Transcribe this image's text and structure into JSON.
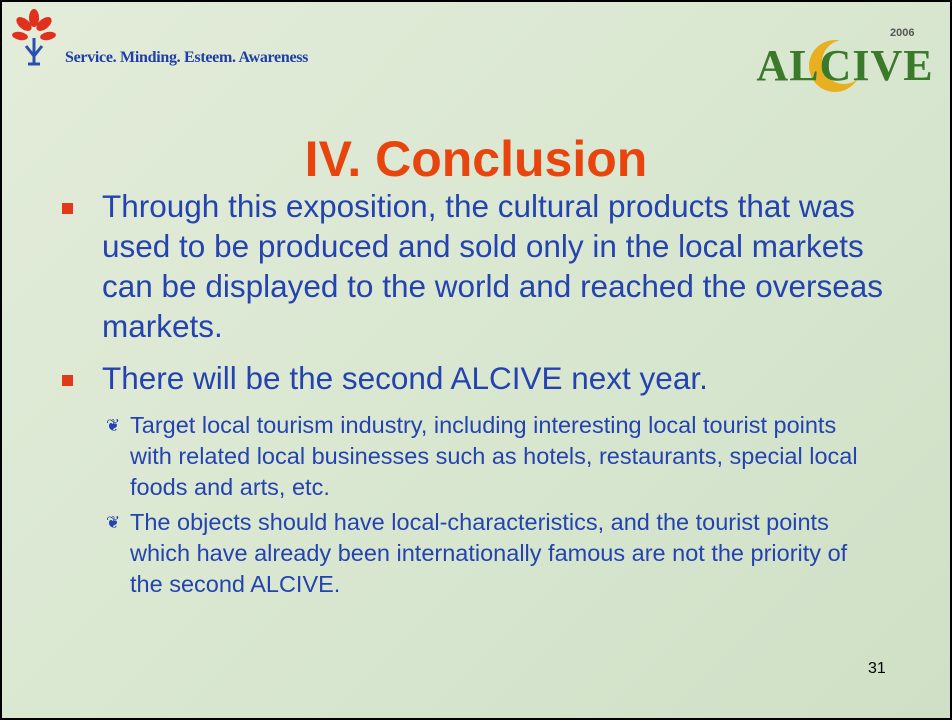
{
  "header": {
    "tagline": "Service. Minding. Esteem. Awareness",
    "logo_text": "ALCIVE",
    "logo_year": "2006"
  },
  "title": "IV. Conclusion",
  "bullets": [
    {
      "text": "Through this exposition, the cultural products that was used to be produced and sold only in the local markets can be displayed to the world and reached the overseas markets.",
      "subs": []
    },
    {
      "text": "There will be the second ALCIVE next year.",
      "subs": [
        "Target local tourism industry, including interesting local tourist points with related local businesses such as hotels, restaurants, special local foods and arts, etc.",
        "The objects should have local-characteristics, and the tourist points which have already been internationally famous are not the priority of the second ALCIVE."
      ]
    }
  ],
  "page_number": "31"
}
